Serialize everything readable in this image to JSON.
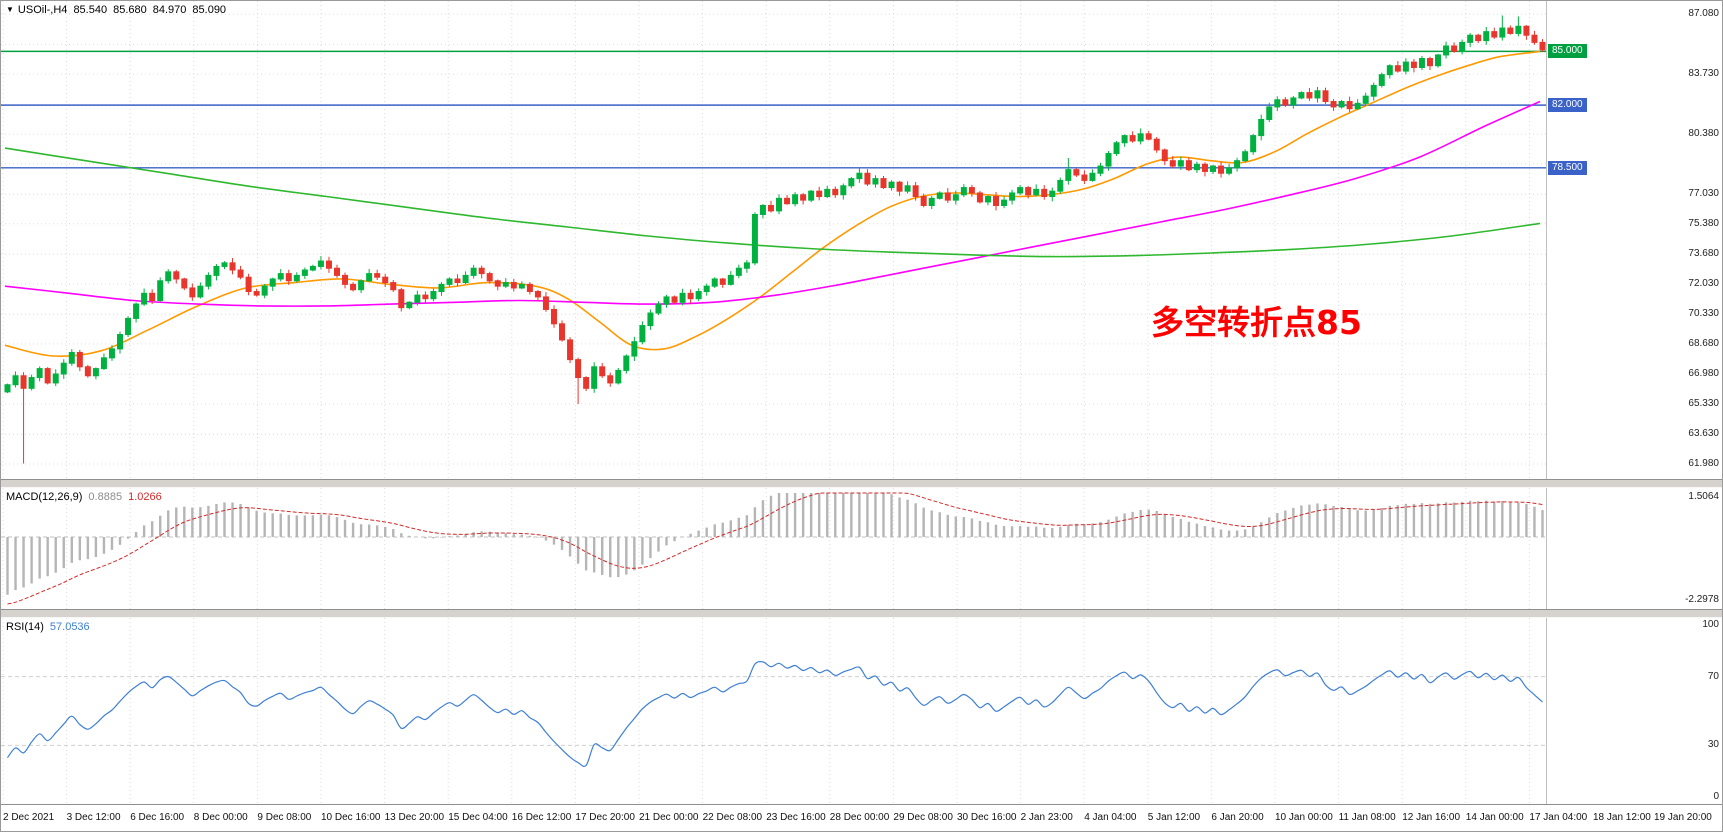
{
  "window": {
    "title_icon": "▼",
    "symbol": "USOil-,H4",
    "ohlc": {
      "open": "85.540",
      "high": "85.680",
      "low": "84.970",
      "close": "85.090"
    }
  },
  "annotation": {
    "text": "多空转折点85",
    "color": "#FF0000"
  },
  "price_scale": {
    "ticks": [
      "87.080",
      "83.730",
      "80.380",
      "77.030",
      "75.380",
      "73.680",
      "72.030",
      "70.330",
      "68.680",
      "66.980",
      "65.330",
      "63.630",
      "61.980"
    ]
  },
  "chart_data": {
    "type": "candlestick",
    "main": {
      "title": "USOil-,H4",
      "timeframe": "H4",
      "y_domain": [
        61.14,
        87.81
      ],
      "grid_prices": [
        87.08,
        85.38,
        83.73,
        82.03,
        80.38,
        78.73,
        77.03,
        75.38,
        73.68,
        72.03,
        70.33,
        68.68,
        66.98,
        65.33,
        63.63,
        61.98
      ],
      "first_open": 66.0,
      "closes": [
        66.4,
        66.9,
        66.2,
        66.8,
        67.3,
        66.5,
        67.0,
        67.6,
        68.2,
        67.4,
        66.9,
        67.3,
        67.9,
        68.4,
        69.2,
        70.1,
        70.9,
        71.5,
        71.1,
        72.2,
        72.7,
        72.3,
        71.8,
        71.3,
        71.9,
        72.5,
        73.0,
        73.2,
        72.8,
        72.4,
        71.6,
        71.4,
        71.9,
        72.3,
        72.6,
        72.2,
        72.5,
        72.8,
        73.0,
        73.3,
        72.9,
        72.5,
        72.0,
        71.7,
        72.2,
        72.6,
        72.4,
        72.1,
        71.7,
        70.7,
        71.0,
        71.4,
        71.2,
        71.6,
        72.0,
        72.3,
        72.1,
        72.5,
        72.9,
        72.6,
        72.2,
        71.9,
        72.1,
        71.8,
        72.0,
        71.6,
        71.3,
        70.6,
        69.8,
        68.9,
        67.8,
        66.8,
        66.2,
        67.4,
        66.9,
        66.5,
        67.2,
        68.0,
        68.8,
        69.7,
        70.4,
        70.9,
        71.3,
        71.0,
        71.5,
        71.2,
        71.6,
        71.9,
        72.3,
        72.0,
        72.5,
        72.9,
        73.2,
        75.9,
        76.4,
        76.1,
        76.8,
        76.5,
        77.0,
        76.7,
        77.2,
        76.9,
        77.3,
        77.0,
        77.5,
        77.9,
        78.2,
        77.6,
        77.9,
        77.4,
        77.7,
        77.2,
        77.5,
        76.9,
        76.4,
        76.8,
        77.1,
        76.7,
        77.0,
        77.4,
        77.1,
        76.6,
        76.9,
        76.4,
        76.7,
        77.1,
        77.4,
        77.0,
        77.3,
        76.9,
        77.2,
        77.8,
        78.4,
        78.1,
        77.8,
        78.2,
        78.6,
        79.3,
        79.9,
        80.3,
        80.0,
        80.4,
        80.1,
        79.5,
        78.9,
        78.6,
        78.9,
        78.4,
        78.7,
        78.3,
        78.6,
        78.2,
        78.5,
        78.9,
        79.4,
        80.3,
        81.2,
        81.9,
        82.3,
        82.0,
        82.4,
        82.7,
        82.4,
        82.8,
        82.2,
        81.9,
        82.2,
        81.8,
        82.1,
        82.5,
        83.1,
        83.7,
        84.2,
        83.9,
        84.4,
        84.1,
        84.6,
        84.2,
        84.8,
        85.3,
        85.0,
        85.5,
        85.9,
        85.6,
        86.1,
        85.8,
        86.3,
        86.0,
        86.4,
        85.9,
        85.5,
        85.09
      ],
      "wick_overrides": {
        "2": {
          "low": 62.0
        },
        "71": {
          "low": 65.33
        },
        "106": {
          "high": 78.5
        },
        "132": {
          "high": 79.05
        },
        "141": {
          "high": 80.7
        },
        "186": {
          "high": 87.0
        },
        "188": {
          "high": 86.95
        },
        "191": {
          "high": 85.68,
          "low": 84.97
        }
      },
      "prehistory_closes": [
        78.4,
        78.0,
        77.5,
        76.9,
        76.2,
        75.4,
        74.6,
        73.8,
        73.0,
        72.2,
        71.4,
        70.6,
        69.8,
        69.0,
        68.3,
        67.6,
        67.0,
        66.4,
        65.9,
        66.3,
        66.7,
        66.2,
        65.8,
        66.2,
        66.6,
        66.3,
        66.0,
        66.4,
        66.6,
        66.2
      ],
      "h_lines": [
        {
          "price": 85.0,
          "color": "#00a041",
          "label": "85.000"
        },
        {
          "price": 82.0,
          "color": "#3a62c8",
          "label": "82.000"
        },
        {
          "price": 78.5,
          "color": "#3a62c8",
          "label": "78.500"
        }
      ],
      "moving_averages": [
        {
          "name": "ma-fast-orange",
          "color": "#ff9900",
          "points": [
            [
              0,
              68.6
            ],
            [
              6,
              68.0
            ],
            [
              12,
              68.3
            ],
            [
              18,
              69.5
            ],
            [
              24,
              70.8
            ],
            [
              30,
              71.8
            ],
            [
              36,
              72.1
            ],
            [
              42,
              72.3
            ],
            [
              48,
              72.0
            ],
            [
              54,
              71.8
            ],
            [
              60,
              72.1
            ],
            [
              66,
              71.9
            ],
            [
              70,
              71.2
            ],
            [
              74,
              69.9
            ],
            [
              78,
              68.6
            ],
            [
              82,
              68.4
            ],
            [
              86,
              69.1
            ],
            [
              90,
              70.1
            ],
            [
              94,
              71.3
            ],
            [
              98,
              72.7
            ],
            [
              102,
              74.1
            ],
            [
              106,
              75.3
            ],
            [
              110,
              76.3
            ],
            [
              114,
              76.9
            ],
            [
              118,
              77.1
            ],
            [
              122,
              77.0
            ],
            [
              126,
              76.9
            ],
            [
              130,
              77.0
            ],
            [
              134,
              77.3
            ],
            [
              138,
              77.9
            ],
            [
              142,
              78.7
            ],
            [
              146,
              79.1
            ],
            [
              150,
              78.9
            ],
            [
              154,
              78.8
            ],
            [
              158,
              79.4
            ],
            [
              162,
              80.4
            ],
            [
              166,
              81.3
            ],
            [
              170,
              82.1
            ],
            [
              174,
              82.9
            ],
            [
              178,
              83.6
            ],
            [
              182,
              84.2
            ],
            [
              186,
              84.7
            ],
            [
              191,
              85.0
            ]
          ]
        },
        {
          "name": "ma-mid-magenta",
          "color": "#ff00ff",
          "points": [
            [
              0,
              71.9
            ],
            [
              8,
              71.5
            ],
            [
              16,
              71.1
            ],
            [
              24,
              70.9
            ],
            [
              32,
              70.8
            ],
            [
              40,
              70.8
            ],
            [
              48,
              70.9
            ],
            [
              56,
              71.0
            ],
            [
              64,
              71.1
            ],
            [
              72,
              71.0
            ],
            [
              80,
              70.9
            ],
            [
              88,
              71.0
            ],
            [
              96,
              71.4
            ],
            [
              104,
              72.0
            ],
            [
              112,
              72.7
            ],
            [
              120,
              73.4
            ],
            [
              128,
              74.1
            ],
            [
              136,
              74.8
            ],
            [
              144,
              75.5
            ],
            [
              152,
              76.2
            ],
            [
              160,
              77.0
            ],
            [
              168,
              77.9
            ],
            [
              176,
              79.1
            ],
            [
              184,
              80.8
            ],
            [
              191,
              82.2
            ]
          ]
        },
        {
          "name": "ma-slow-green",
          "color": "#2eb82e",
          "points": [
            [
              0,
              79.6
            ],
            [
              10,
              78.9
            ],
            [
              20,
              78.2
            ],
            [
              30,
              77.5
            ],
            [
              40,
              76.9
            ],
            [
              50,
              76.3
            ],
            [
              60,
              75.7
            ],
            [
              70,
              75.2
            ],
            [
              80,
              74.7
            ],
            [
              90,
              74.3
            ],
            [
              100,
              74.0
            ],
            [
              110,
              73.8
            ],
            [
              120,
              73.65
            ],
            [
              130,
              73.55
            ],
            [
              140,
              73.6
            ],
            [
              150,
              73.75
            ],
            [
              160,
              73.95
            ],
            [
              170,
              74.25
            ],
            [
              180,
              74.7
            ],
            [
              191,
              75.4
            ]
          ]
        }
      ],
      "up_color": "#00b140",
      "down_color": "#e8362d"
    },
    "macd": {
      "label": "MACD(12,26,9)",
      "params": [
        12,
        26,
        9
      ],
      "value_main": "0.8885",
      "value_signal": "1.0266",
      "axis_top": "1.5064",
      "axis_bottom": "-2.2978",
      "range": [
        -2.2978,
        1.5064
      ],
      "histogram_color": "#b5b5b5",
      "signal_color": "#d42a2a"
    },
    "rsi": {
      "label": "RSI(14)",
      "period": 14,
      "value": "57.0536",
      "levels": [
        "100",
        "70",
        "30",
        "0"
      ],
      "dashed_levels": [
        70,
        30
      ],
      "scale": [
        0,
        100
      ],
      "line_color": "#3e7fd4"
    }
  },
  "time_axis": {
    "labels": [
      "2 Dec 2021",
      "3 Dec 12:00",
      "6 Dec 16:00",
      "8 Dec 00:00",
      "9 Dec 08:00",
      "10 Dec 16:00",
      "13 Dec 20:00",
      "15 Dec 04:00",
      "16 Dec 12:00",
      "17 Dec 20:00",
      "21 Dec 00:00",
      "22 Dec 08:00",
      "23 Dec 16:00",
      "28 Dec 00:00",
      "29 Dec 08:00",
      "30 Dec 16:00",
      "2 Jan 23:00",
      "4 Jan 04:00",
      "5 Jan 12:00",
      "6 Jan 20:00",
      "10 Jan 00:00",
      "11 Jan 08:00",
      "12 Jan 16:00",
      "14 Jan 00:00",
      "17 Jan 04:00",
      "18 Jan 12:00",
      "19 Jan 20:00"
    ]
  }
}
